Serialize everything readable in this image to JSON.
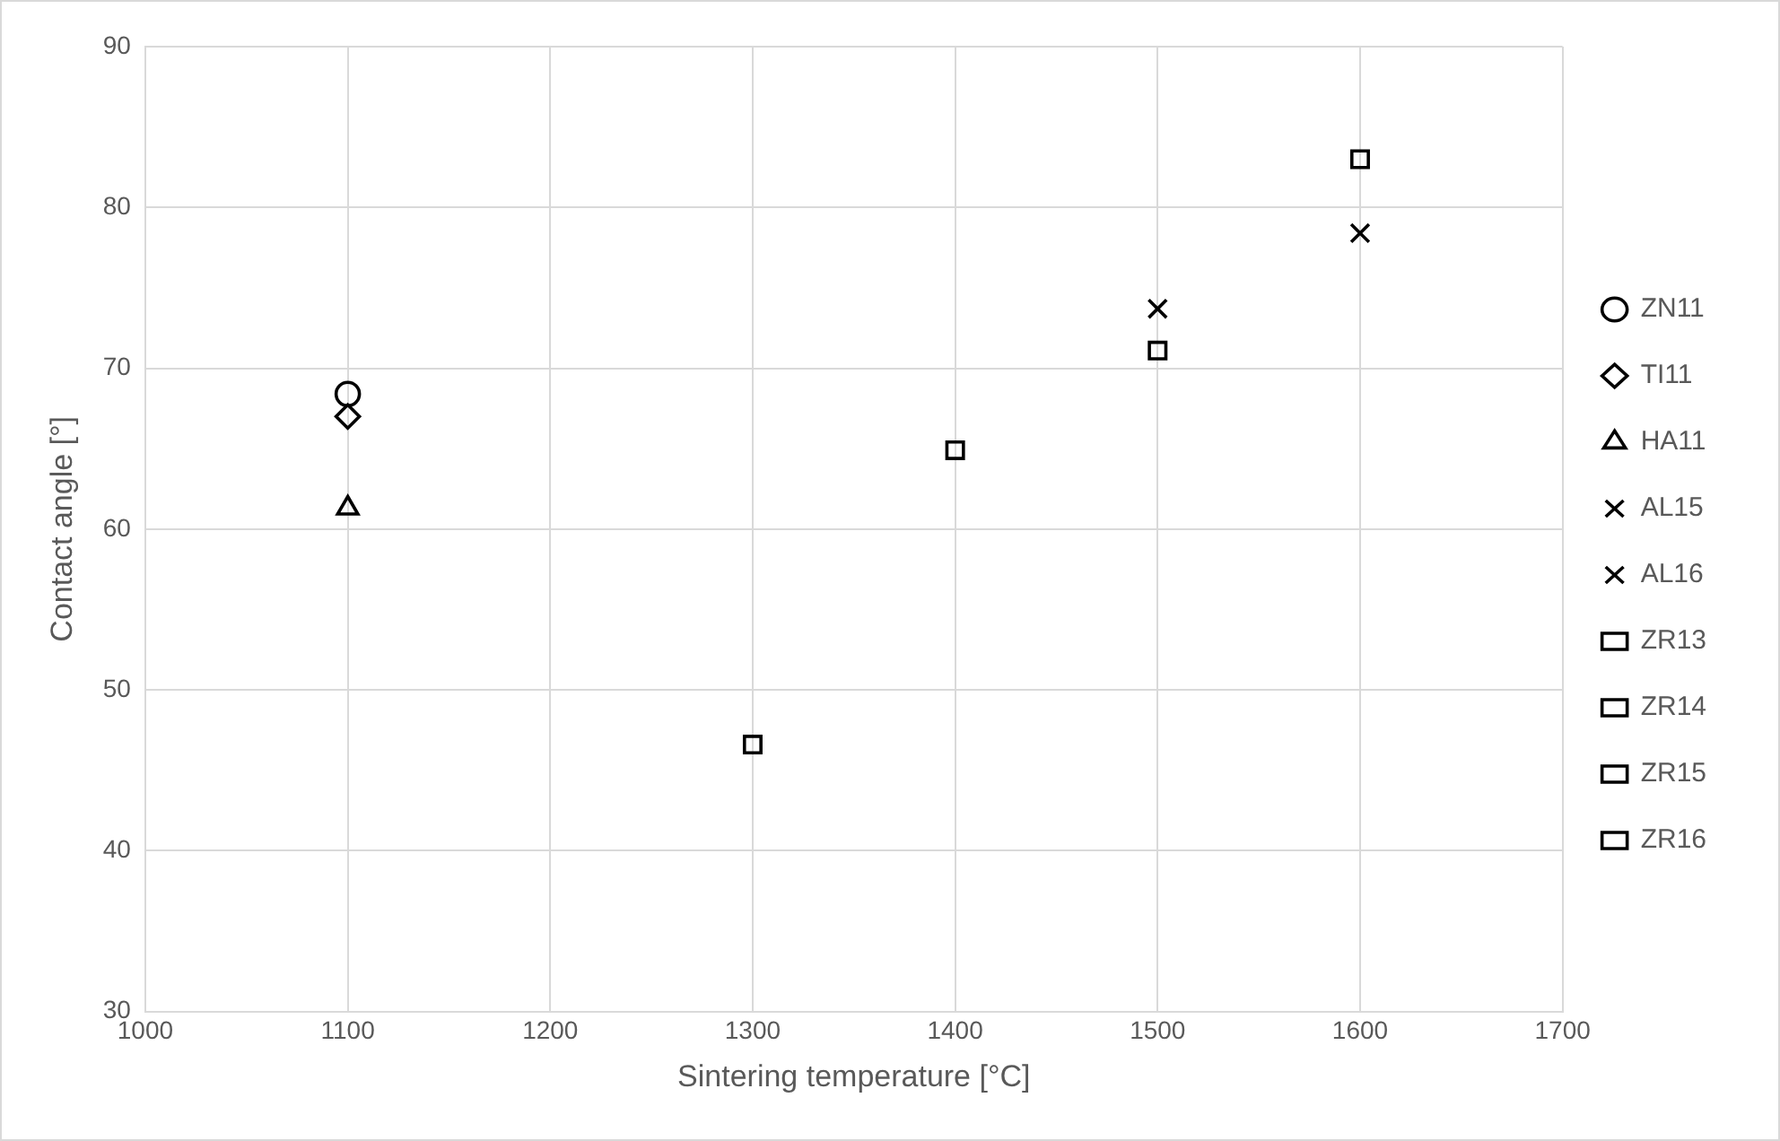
{
  "chart_data": {
    "type": "scatter",
    "xlabel": "Sintering temperature [°C]",
    "ylabel": "Contact angle [°]",
    "xlim": [
      1000,
      1700
    ],
    "xticks": [
      1000,
      1100,
      1200,
      1300,
      1400,
      1500,
      1600,
      1700
    ],
    "ylim": [
      30,
      90
    ],
    "yticks": [
      30,
      40,
      50,
      60,
      70,
      80,
      90
    ],
    "grid": true,
    "legend": "right",
    "series": [
      {
        "name": "ZN11",
        "color": "#000000",
        "marker": "circle",
        "x": [
          1100
        ],
        "values": [
          68.4
        ]
      },
      {
        "name": "TI11",
        "color": "#000000",
        "marker": "diamond",
        "x": [
          1100
        ],
        "values": [
          67.0
        ]
      },
      {
        "name": "HA11",
        "color": "#000000",
        "marker": "triangle",
        "x": [
          1100
        ],
        "values": [
          61.3
        ]
      },
      {
        "name": "AL15",
        "color": "#000000",
        "marker": "cross",
        "x": [
          1500
        ],
        "values": [
          73.7
        ]
      },
      {
        "name": "AL16",
        "color": "#000000",
        "marker": "cross",
        "x": [
          1600
        ],
        "values": [
          78.4
        ]
      },
      {
        "name": "ZR13",
        "color": "#000000",
        "marker": "square",
        "x": [
          1300
        ],
        "values": [
          46.6
        ]
      },
      {
        "name": "ZR14",
        "color": "#000000",
        "marker": "square",
        "x": [
          1400
        ],
        "values": [
          64.9
        ]
      },
      {
        "name": "ZR15",
        "color": "#000000",
        "marker": "square",
        "x": [
          1500
        ],
        "values": [
          71.1
        ]
      },
      {
        "name": "ZR16",
        "color": "#000000",
        "marker": "square",
        "x": [
          1600
        ],
        "values": [
          83.0
        ]
      }
    ]
  }
}
